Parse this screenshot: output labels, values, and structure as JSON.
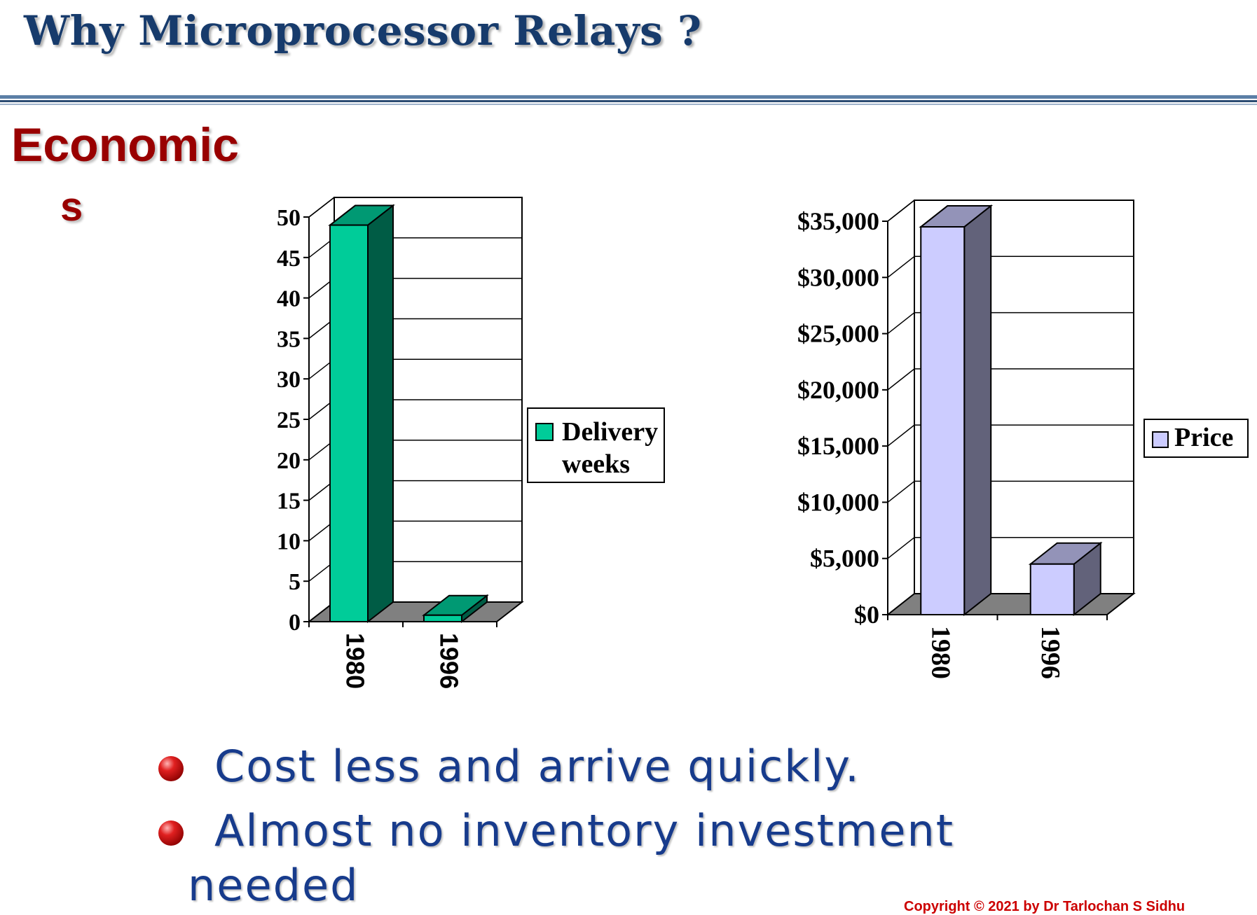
{
  "page": {
    "title": "Why Microprocessor Relays ?",
    "section_line1": "Economic",
    "section_line2": "s",
    "bullets": [
      "Cost less and arrive quickly.",
      "Almost no inventory investment"
    ],
    "bullet2_cont": "needed",
    "copyright": "Copyright © 2021 by Dr Tarlochan S Sidhu"
  },
  "colors": {
    "title": "#173b6c",
    "section": "#990000",
    "bullet_text": "#173b8c",
    "delivery_bar": "#00cc99",
    "price_bar": "#ccccff"
  },
  "chart_data": [
    {
      "type": "bar",
      "style": "3d-column",
      "categories": [
        "1980",
        "1996"
      ],
      "series": [
        {
          "name": "Delivery weeks",
          "values": [
            49,
            0.8
          ]
        }
      ],
      "ylim": [
        0,
        50
      ],
      "yticks": [
        "0",
        "5",
        "10",
        "15",
        "20",
        "25",
        "30",
        "35",
        "40",
        "45",
        "50"
      ],
      "legend": {
        "line1": "Delivery",
        "line2": "weeks",
        "position": "right"
      },
      "grid": true
    },
    {
      "type": "bar",
      "style": "3d-column",
      "categories": [
        "1980",
        "1996"
      ],
      "series": [
        {
          "name": "Price",
          "values": [
            34500,
            4500
          ]
        }
      ],
      "ylim": [
        0,
        35000
      ],
      "yticks": [
        "$0",
        "$5,000",
        "$10,000",
        "$15,000",
        "$20,000",
        "$25,000",
        "$30,000",
        "$35,000"
      ],
      "legend": {
        "label": "Price",
        "position": "right"
      },
      "grid": true
    }
  ]
}
